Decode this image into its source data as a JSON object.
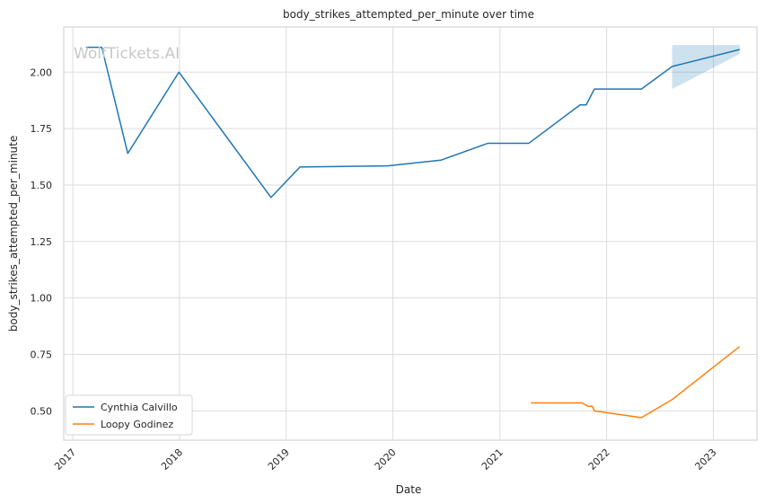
{
  "chart_data": {
    "type": "line",
    "title": "body_strikes_attempted_per_minute over time",
    "xlabel": "Date",
    "ylabel": "body_strikes_attempted_per_minute",
    "watermark": "WolfTickets.AI",
    "xlim": [
      "2016-12-01",
      "2023-05-30"
    ],
    "ylim": [
      0.37,
      2.2
    ],
    "x_ticks": [
      "2017",
      "2018",
      "2019",
      "2020",
      "2021",
      "2022",
      "2023"
    ],
    "y_ticks": [
      "0.50",
      "0.75",
      "1.00",
      "1.25",
      "1.50",
      "1.75",
      "2.00"
    ],
    "grid": true,
    "legend_position": "bottom-left",
    "series": [
      {
        "name": "Cynthia Calvillo",
        "color": "#1f77b4",
        "points": [
          [
            "2017-02-15",
            2.11
          ],
          [
            "2017-04-10",
            2.11
          ],
          [
            "2017-07-08",
            1.64
          ],
          [
            "2017-12-30",
            2.0
          ],
          [
            "2018-11-10",
            1.445
          ],
          [
            "2019-02-17",
            1.58
          ],
          [
            "2019-12-14",
            1.585
          ],
          [
            "2020-06-13",
            1.61
          ],
          [
            "2020-11-21",
            1.685
          ],
          [
            "2021-04-10",
            1.685
          ],
          [
            "2021-10-02",
            1.855
          ],
          [
            "2021-10-23",
            1.855
          ],
          [
            "2021-11-20",
            1.925
          ],
          [
            "2022-04-30",
            1.925
          ],
          [
            "2022-08-13",
            2.025
          ],
          [
            "2023-04-01",
            2.1
          ]
        ],
        "band": [
          [
            "2022-08-13",
            1.925,
            2.12
          ],
          [
            "2023-04-01",
            2.08,
            2.12
          ]
        ]
      },
      {
        "name": "Loopy Godinez",
        "color": "#ff7f0e",
        "points": [
          [
            "2021-04-17",
            0.535
          ],
          [
            "2021-10-09",
            0.535
          ],
          [
            "2021-10-30",
            0.52
          ],
          [
            "2021-11-13",
            0.52
          ],
          [
            "2021-11-20",
            0.5
          ],
          [
            "2022-04-30",
            0.47
          ],
          [
            "2022-08-13",
            0.55
          ],
          [
            "2023-04-01",
            0.785
          ]
        ]
      }
    ]
  }
}
